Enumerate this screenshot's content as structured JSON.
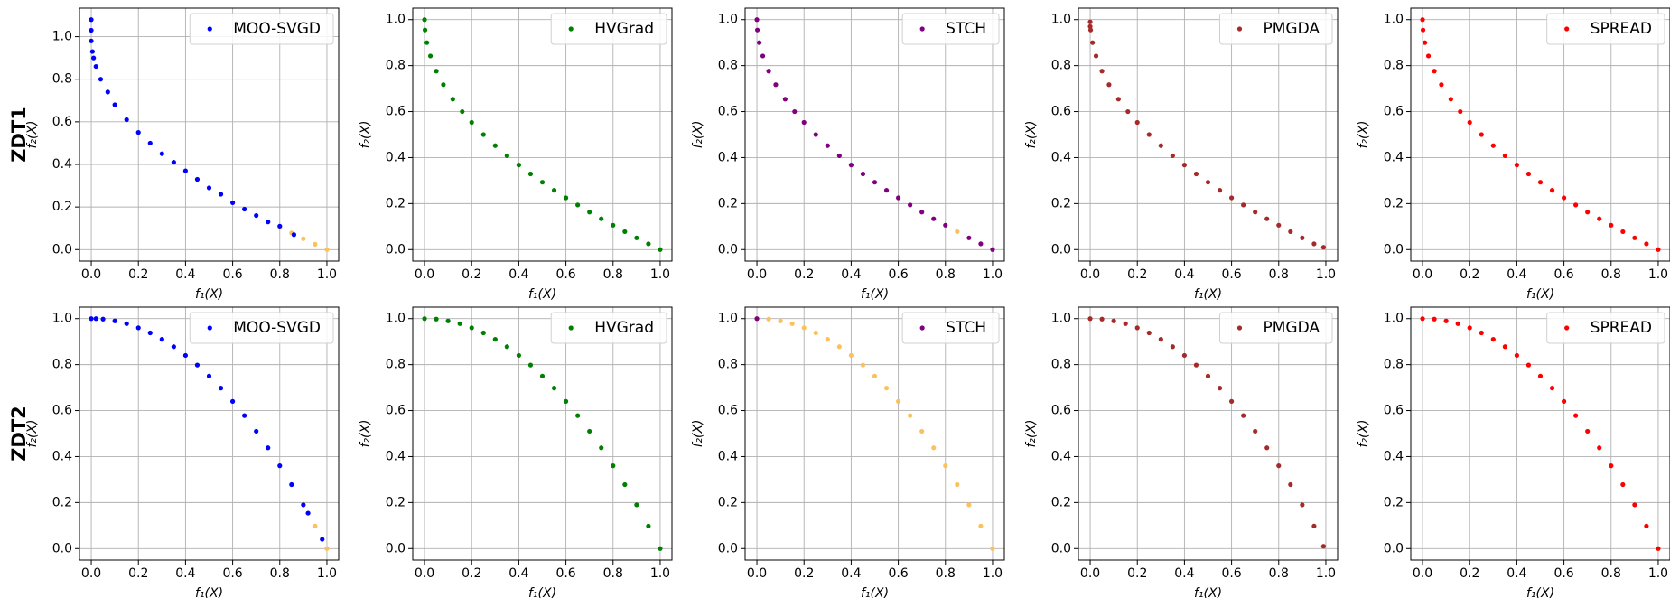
{
  "row_labels": [
    "ZDT1",
    "ZDT2"
  ],
  "chart_data": [
    {
      "type": "scatter",
      "xlabel": "f₁(X)",
      "ylabel": "f₂(X)",
      "xlim": [
        -0.05,
        1.05
      ],
      "ylim": [
        -0.054,
        1.134
      ],
      "xticks": [
        {
          "value": 0,
          "label": "0.0"
        },
        0.2,
        0.4,
        0.6,
        0.8,
        {
          "value": 1,
          "label": "1.0"
        }
      ],
      "yticks": [
        {
          "value": 0,
          "label": "0.0"
        },
        0.2,
        0.4,
        0.6,
        0.8,
        {
          "value": 1,
          "label": "1.0"
        }
      ],
      "grid": true,
      "legend": "upper right",
      "series": [
        {
          "color": "#fbc25a",
          "x": [
            0.8,
            0.85,
            0.9,
            0.95,
            1.0
          ],
          "y": [
            0.106,
            0.078,
            0.051,
            0.025,
            0
          ]
        },
        {
          "name": "MOO-SVGD",
          "color": "#0000ff",
          "x": [
            0,
            0,
            0,
            0.005,
            0.01,
            0.02,
            0.04,
            0.07,
            0.1,
            0.15,
            0.2,
            0.25,
            0.3,
            0.35,
            0.4,
            0.45,
            0.5,
            0.55,
            0.6,
            0.65,
            0.7,
            0.75,
            0.8,
            0.86
          ],
          "y": [
            1.08,
            1.03,
            0.98,
            0.93,
            0.9,
            0.86,
            0.8,
            0.74,
            0.68,
            0.61,
            0.55,
            0.5,
            0.45,
            0.41,
            0.37,
            0.33,
            0.29,
            0.26,
            0.22,
            0.19,
            0.16,
            0.13,
            0.11,
            0.07
          ]
        }
      ]
    },
    {
      "type": "scatter",
      "xlabel": "f₁(X)",
      "ylabel": "f₂(X)",
      "xlim": [
        -0.05,
        1.05
      ],
      "ylim": [
        -0.05,
        1.05
      ],
      "xticks": [
        {
          "value": 0,
          "label": "0.0"
        },
        0.2,
        0.4,
        0.6,
        0.8,
        {
          "value": 1,
          "label": "1.0"
        }
      ],
      "yticks": [
        {
          "value": 0,
          "label": "0.0"
        },
        0.2,
        0.4,
        0.6,
        0.8,
        {
          "value": 1,
          "label": "1.0"
        }
      ],
      "grid": true,
      "legend": "upper right",
      "series": [
        {
          "name": "HVGrad",
          "color": "#008000",
          "x": [
            0,
            0.002,
            0.01,
            0.025,
            0.05,
            0.08,
            0.12,
            0.16,
            0.2,
            0.25,
            0.3,
            0.35,
            0.4,
            0.45,
            0.5,
            0.55,
            0.6,
            0.65,
            0.7,
            0.75,
            0.8,
            0.85,
            0.9,
            0.95,
            1.0
          ],
          "y": [
            1,
            0.955,
            0.9,
            0.842,
            0.776,
            0.717,
            0.654,
            0.6,
            0.553,
            0.5,
            0.452,
            0.408,
            0.368,
            0.329,
            0.293,
            0.258,
            0.225,
            0.194,
            0.163,
            0.134,
            0.106,
            0.078,
            0.051,
            0.025,
            0
          ]
        }
      ]
    },
    {
      "type": "scatter",
      "xlabel": "f₁(X)",
      "ylabel": "f₂(X)",
      "xlim": [
        -0.05,
        1.05
      ],
      "ylim": [
        -0.05,
        1.05
      ],
      "xticks": [
        {
          "value": 0,
          "label": "0.0"
        },
        0.2,
        0.4,
        0.6,
        0.8,
        {
          "value": 1,
          "label": "1.0"
        }
      ],
      "yticks": [
        {
          "value": 0,
          "label": "0.0"
        },
        0.2,
        0.4,
        0.6,
        0.8,
        {
          "value": 1,
          "label": "1.0"
        }
      ],
      "grid": true,
      "legend": "upper right",
      "series": [
        {
          "color": "#fbc25a",
          "x": [
            0.85
          ],
          "y": [
            0.078
          ]
        },
        {
          "name": "STCH",
          "color": "#800080",
          "x": [
            0,
            0.002,
            0.01,
            0.025,
            0.05,
            0.08,
            0.12,
            0.16,
            0.2,
            0.25,
            0.3,
            0.35,
            0.4,
            0.45,
            0.5,
            0.55,
            0.6,
            0.65,
            0.7,
            0.75,
            0.8,
            0.9,
            0.95,
            1.0
          ],
          "y": [
            1,
            0.955,
            0.9,
            0.842,
            0.776,
            0.717,
            0.654,
            0.6,
            0.553,
            0.5,
            0.452,
            0.408,
            0.368,
            0.329,
            0.293,
            0.258,
            0.225,
            0.194,
            0.163,
            0.134,
            0.106,
            0.051,
            0.025,
            0
          ]
        }
      ]
    },
    {
      "type": "scatter",
      "xlabel": "f₁(X)",
      "ylabel": "f₂(X)",
      "xlim": [
        -0.05,
        1.05
      ],
      "ylim": [
        -0.05,
        1.05
      ],
      "xticks": [
        {
          "value": 0,
          "label": "0.0"
        },
        0.2,
        0.4,
        0.6,
        0.8,
        {
          "value": 1,
          "label": "1.0"
        }
      ],
      "yticks": [
        {
          "value": 0,
          "label": "0.0"
        },
        0.2,
        0.4,
        0.6,
        0.8,
        {
          "value": 1,
          "label": "1.0"
        }
      ],
      "grid": true,
      "legend": "upper right",
      "series": [
        {
          "name": "PMGDA",
          "color": "#a52a2a",
          "x": [
            0,
            0,
            0.002,
            0.01,
            0.025,
            0.05,
            0.08,
            0.12,
            0.16,
            0.2,
            0.25,
            0.3,
            0.35,
            0.4,
            0.45,
            0.5,
            0.55,
            0.6,
            0.65,
            0.7,
            0.75,
            0.8,
            0.85,
            0.9,
            0.95,
            0.99
          ],
          "y": [
            0.99,
            0.97,
            0.955,
            0.9,
            0.842,
            0.776,
            0.717,
            0.654,
            0.6,
            0.553,
            0.5,
            0.452,
            0.408,
            0.368,
            0.329,
            0.293,
            0.258,
            0.225,
            0.194,
            0.163,
            0.134,
            0.106,
            0.078,
            0.051,
            0.025,
            0.01
          ]
        }
      ]
    },
    {
      "type": "scatter",
      "xlabel": "f₁(X)",
      "ylabel": "f₂(X)",
      "xlim": [
        -0.05,
        1.05
      ],
      "ylim": [
        -0.05,
        1.05
      ],
      "xticks": [
        {
          "value": 0,
          "label": "0.0"
        },
        0.2,
        0.4,
        0.6,
        0.8,
        {
          "value": 1,
          "label": "1.0"
        }
      ],
      "yticks": [
        {
          "value": 0,
          "label": "0.0"
        },
        0.2,
        0.4,
        0.6,
        0.8,
        {
          "value": 1,
          "label": "1.0"
        }
      ],
      "grid": true,
      "legend": "upper right",
      "series": [
        {
          "name": "SPREAD",
          "color": "#ff0000",
          "x": [
            0,
            0.002,
            0.01,
            0.025,
            0.05,
            0.08,
            0.12,
            0.16,
            0.2,
            0.25,
            0.3,
            0.35,
            0.4,
            0.45,
            0.5,
            0.55,
            0.6,
            0.65,
            0.7,
            0.75,
            0.8,
            0.85,
            0.9,
            0.95,
            1.0
          ],
          "y": [
            1,
            0.955,
            0.9,
            0.842,
            0.776,
            0.717,
            0.654,
            0.6,
            0.553,
            0.5,
            0.452,
            0.408,
            0.368,
            0.329,
            0.293,
            0.258,
            0.225,
            0.194,
            0.163,
            0.134,
            0.106,
            0.078,
            0.051,
            0.025,
            0
          ]
        }
      ]
    },
    {
      "type": "scatter",
      "xlabel": "f₁(X)",
      "ylabel": "f₂(X)",
      "xlim": [
        -0.05,
        1.05
      ],
      "ylim": [
        -0.05,
        1.05
      ],
      "xticks": [
        {
          "value": 0,
          "label": "0.0"
        },
        0.2,
        0.4,
        0.6,
        0.8,
        {
          "value": 1,
          "label": "1.0"
        }
      ],
      "yticks": [
        {
          "value": 0,
          "label": "0.0"
        },
        0.2,
        0.4,
        0.6,
        0.8,
        {
          "value": 1,
          "label": "1.0"
        }
      ],
      "grid": true,
      "legend": "upper right",
      "series": [
        {
          "color": "#fbc25a",
          "x": [
            0.9,
            0.95,
            1.0
          ],
          "y": [
            0.19,
            0.098,
            0
          ]
        },
        {
          "name": "MOO-SVGD",
          "color": "#0000ff",
          "x": [
            0,
            0.02,
            0.05,
            0.1,
            0.15,
            0.2,
            0.25,
            0.3,
            0.35,
            0.4,
            0.45,
            0.5,
            0.55,
            0.6,
            0.65,
            0.7,
            0.75,
            0.8,
            0.85,
            0.9,
            0.92,
            0.98
          ],
          "y": [
            1,
            1.0,
            0.998,
            0.99,
            0.978,
            0.96,
            0.938,
            0.91,
            0.878,
            0.84,
            0.798,
            0.75,
            0.698,
            0.64,
            0.578,
            0.51,
            0.438,
            0.36,
            0.278,
            0.19,
            0.154,
            0.04
          ]
        }
      ]
    },
    {
      "type": "scatter",
      "xlabel": "f₁(X)",
      "ylabel": "f₂(X)",
      "xlim": [
        -0.05,
        1.05
      ],
      "ylim": [
        -0.05,
        1.05
      ],
      "xticks": [
        {
          "value": 0,
          "label": "0.0"
        },
        0.2,
        0.4,
        0.6,
        0.8,
        {
          "value": 1,
          "label": "1.0"
        }
      ],
      "yticks": [
        {
          "value": 0,
          "label": "0.0"
        },
        0.2,
        0.4,
        0.6,
        0.8,
        {
          "value": 1,
          "label": "1.0"
        }
      ],
      "grid": true,
      "legend": "upper right",
      "series": [
        {
          "name": "HVGrad",
          "color": "#008000",
          "x": [
            0,
            0.05,
            0.1,
            0.15,
            0.2,
            0.25,
            0.3,
            0.35,
            0.4,
            0.45,
            0.5,
            0.55,
            0.6,
            0.65,
            0.7,
            0.75,
            0.8,
            0.85,
            0.9,
            0.95,
            1.0
          ],
          "y": [
            1,
            0.998,
            0.99,
            0.978,
            0.96,
            0.938,
            0.91,
            0.878,
            0.84,
            0.798,
            0.75,
            0.698,
            0.64,
            0.578,
            0.51,
            0.438,
            0.36,
            0.278,
            0.19,
            0.098,
            0
          ]
        }
      ]
    },
    {
      "type": "scatter",
      "xlabel": "f₁(X)",
      "ylabel": "f₂(X)",
      "xlim": [
        -0.05,
        1.05
      ],
      "ylim": [
        -0.05,
        1.05
      ],
      "xticks": [
        {
          "value": 0,
          "label": "0.0"
        },
        0.2,
        0.4,
        0.6,
        0.8,
        {
          "value": 1,
          "label": "1.0"
        }
      ],
      "yticks": [
        {
          "value": 0,
          "label": "0.0"
        },
        0.2,
        0.4,
        0.6,
        0.8,
        {
          "value": 1,
          "label": "1.0"
        }
      ],
      "grid": true,
      "legend": "upper right",
      "series": [
        {
          "color": "#fbc25a",
          "x": [
            0,
            0.05,
            0.1,
            0.15,
            0.2,
            0.25,
            0.3,
            0.35,
            0.4,
            0.45,
            0.5,
            0.55,
            0.6,
            0.65,
            0.7,
            0.75,
            0.8,
            0.85,
            0.9,
            0.95,
            1.0
          ],
          "y": [
            1,
            0.998,
            0.99,
            0.978,
            0.96,
            0.938,
            0.91,
            0.878,
            0.84,
            0.798,
            0.75,
            0.698,
            0.64,
            0.578,
            0.51,
            0.438,
            0.36,
            0.278,
            0.19,
            0.098,
            0
          ]
        },
        {
          "name": "STCH",
          "color": "#800080",
          "x": [
            0
          ],
          "y": [
            1
          ]
        }
      ]
    },
    {
      "type": "scatter",
      "xlabel": "f₁(X)",
      "ylabel": "f₂(X)",
      "xlim": [
        -0.05,
        1.05
      ],
      "ylim": [
        -0.05,
        1.05
      ],
      "xticks": [
        {
          "value": 0,
          "label": "0.0"
        },
        0.2,
        0.4,
        0.6,
        0.8,
        {
          "value": 1,
          "label": "1.0"
        }
      ],
      "yticks": [
        {
          "value": 0,
          "label": "0.0"
        },
        0.2,
        0.4,
        0.6,
        0.8,
        {
          "value": 1,
          "label": "1.0"
        }
      ],
      "grid": true,
      "legend": "upper right",
      "series": [
        {
          "name": "PMGDA",
          "color": "#a52a2a",
          "x": [
            0,
            0.05,
            0.1,
            0.15,
            0.2,
            0.25,
            0.3,
            0.35,
            0.4,
            0.45,
            0.5,
            0.55,
            0.6,
            0.65,
            0.7,
            0.75,
            0.8,
            0.85,
            0.9,
            0.95,
            0.99
          ],
          "y": [
            1,
            0.998,
            0.99,
            0.978,
            0.96,
            0.938,
            0.91,
            0.878,
            0.84,
            0.798,
            0.75,
            0.698,
            0.64,
            0.578,
            0.51,
            0.438,
            0.36,
            0.278,
            0.19,
            0.098,
            0.01
          ]
        }
      ]
    },
    {
      "type": "scatter",
      "xlabel": "f₁(X)",
      "ylabel": "f₂(X)",
      "xlim": [
        -0.05,
        1.05
      ],
      "ylim": [
        -0.05,
        1.05
      ],
      "xticks": [
        {
          "value": 0,
          "label": "0.0"
        },
        0.2,
        0.4,
        0.6,
        0.8,
        {
          "value": 1,
          "label": "1.0"
        }
      ],
      "yticks": [
        {
          "value": 0,
          "label": "0.0"
        },
        0.2,
        0.4,
        0.6,
        0.8,
        {
          "value": 1,
          "label": "1.0"
        }
      ],
      "grid": true,
      "legend": "upper right",
      "series": [
        {
          "name": "SPREAD",
          "color": "#ff0000",
          "x": [
            0,
            0.05,
            0.1,
            0.15,
            0.2,
            0.25,
            0.3,
            0.35,
            0.4,
            0.45,
            0.5,
            0.55,
            0.6,
            0.65,
            0.7,
            0.75,
            0.8,
            0.85,
            0.9,
            0.95,
            1.0
          ],
          "y": [
            1,
            0.998,
            0.99,
            0.978,
            0.96,
            0.938,
            0.91,
            0.878,
            0.84,
            0.798,
            0.75,
            0.698,
            0.64,
            0.578,
            0.51,
            0.438,
            0.36,
            0.278,
            0.19,
            0.098,
            0
          ]
        }
      ]
    }
  ]
}
